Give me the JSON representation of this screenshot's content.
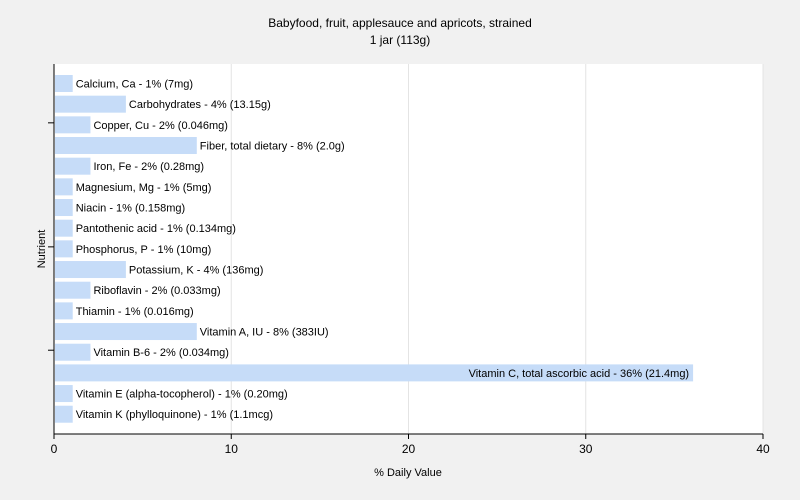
{
  "chart_data": {
    "type": "bar",
    "orientation": "horizontal",
    "title": "Babyfood, fruit, applesauce and apricots, strained",
    "subtitle": "1 jar (113g)",
    "xlabel": "% Daily Value",
    "ylabel": "Nutrient",
    "xlim": [
      0,
      40
    ],
    "xticks": [
      "0",
      "10",
      "20",
      "30",
      "40"
    ],
    "grid": true,
    "bar_color": "#c6dcf8",
    "categories": [
      "Calcium, Ca",
      "Carbohydrates",
      "Copper, Cu",
      "Fiber, total dietary",
      "Iron, Fe",
      "Magnesium, Mg",
      "Niacin",
      "Pantothenic acid",
      "Phosphorus, P",
      "Potassium, K",
      "Riboflavin",
      "Thiamin",
      "Vitamin A, IU",
      "Vitamin B-6",
      "Vitamin C, total ascorbic acid",
      "Vitamin E (alpha-tocopherol)",
      "Vitamin K (phylloquinone)"
    ],
    "values": [
      1,
      4,
      2,
      8,
      2,
      1,
      1,
      1,
      1,
      4,
      2,
      1,
      8,
      2,
      36,
      1,
      1
    ],
    "labels": [
      "Calcium, Ca - 1% (7mg)",
      "Carbohydrates - 4% (13.15g)",
      "Copper, Cu - 2% (0.046mg)",
      "Fiber, total dietary - 8% (2.0g)",
      "Iron, Fe - 2% (0.28mg)",
      "Magnesium, Mg - 1% (5mg)",
      "Niacin - 1% (0.158mg)",
      "Pantothenic acid - 1% (0.134mg)",
      "Phosphorus, P - 1% (10mg)",
      "Potassium, K - 4% (136mg)",
      "Riboflavin - 2% (0.033mg)",
      "Thiamin - 1% (0.016mg)",
      "Vitamin A, IU - 8% (383IU)",
      "Vitamin B-6 - 2% (0.034mg)",
      "Vitamin C, total ascorbic acid - 36% (21.4mg)",
      "Vitamin E (alpha-tocopherol) - 1% (0.20mg)",
      "Vitamin K (phylloquinone) - 1% (1.1mcg)"
    ]
  }
}
